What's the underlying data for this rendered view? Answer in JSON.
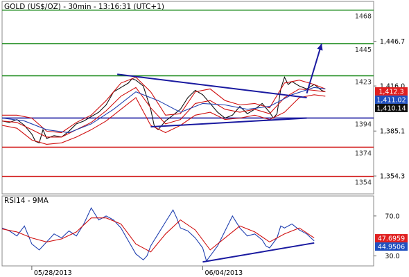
{
  "chart_data": [
    {
      "type": "line",
      "title": "GOLD (US$/OZ) - 30min - 13:16:31 (UTC+1)",
      "yticks": [
        "1,446.7",
        "1,416.0",
        "1,385.1",
        "1,354.3"
      ],
      "ytick_values": [
        1446.7,
        1416.0,
        1385.1,
        1354.3
      ],
      "ylim": [
        1342,
        1474
      ],
      "xlim": [
        0,
        100
      ],
      "x_dates": [
        {
          "label": "05/28/2013",
          "x": 8
        },
        {
          "label": "06/04/2013",
          "x": 54
        }
      ],
      "levels": [
        {
          "value": 1468,
          "label": "1468",
          "color": "#1a8a1a"
        },
        {
          "value": 1445,
          "label": "1445",
          "color": "#1a8a1a"
        },
        {
          "value": 1423,
          "label": "1423",
          "color": "#1a8a1a"
        },
        {
          "value": 1394,
          "label": "1394",
          "color": "#1a1aa0"
        },
        {
          "value": 1374,
          "label": "1374",
          "color": "#d01010"
        },
        {
          "value": 1354,
          "label": "1354",
          "color": "#d01010"
        }
      ],
      "price_tags": [
        {
          "label": "1,412.3",
          "value": 1412.3,
          "color": "#e02020"
        },
        {
          "label": "1,411.02",
          "value": 1411.02,
          "color": "#2050c0"
        },
        {
          "label": "1,410.14",
          "value": 1410.14,
          "color": "#111111"
        }
      ],
      "series": [
        {
          "color": "#111111",
          "x": [
            0,
            2,
            4,
            6,
            8,
            9,
            10,
            11,
            12,
            14,
            16,
            18,
            20,
            22,
            24,
            26,
            28,
            30,
            32,
            34,
            35,
            36,
            38,
            40,
            41,
            42,
            44,
            46,
            48,
            50,
            52,
            54,
            56,
            58,
            60,
            62,
            64,
            66,
            68,
            70,
            72,
            73,
            74,
            75,
            76,
            77,
            78,
            80,
            82,
            84,
            86,
            87
          ],
          "values": [
            1392,
            1391,
            1393,
            1389,
            1383,
            1378,
            1377,
            1386,
            1380,
            1382,
            1381,
            1385,
            1390,
            1392,
            1395,
            1398,
            1403,
            1412,
            1415,
            1418,
            1421,
            1420,
            1416,
            1400,
            1388,
            1386,
            1392,
            1396,
            1400,
            1408,
            1413,
            1410,
            1404,
            1398,
            1394,
            1396,
            1402,
            1397,
            1400,
            1404,
            1398,
            1394,
            1397,
            1414,
            1422,
            1417,
            1419,
            1416,
            1414,
            1417,
            1413,
            1412
          ]
        },
        {
          "color": "#d01010",
          "x": [
            0,
            4,
            8,
            12,
            16,
            20,
            24,
            28,
            32,
            36,
            40,
            44,
            48,
            52,
            56,
            60,
            64,
            68,
            72,
            76,
            80,
            84,
            87
          ],
          "values": [
            1396,
            1396,
            1394,
            1385,
            1384,
            1391,
            1396,
            1406,
            1418,
            1422,
            1412,
            1396,
            1397,
            1412,
            1414,
            1406,
            1403,
            1404,
            1401,
            1418,
            1420,
            1417,
            1414
          ]
        },
        {
          "color": "#d01010",
          "x": [
            0,
            4,
            8,
            12,
            16,
            20,
            24,
            28,
            32,
            36,
            40,
            44,
            48,
            52,
            56,
            60,
            64,
            68,
            72,
            76,
            80,
            84,
            87
          ],
          "values": [
            1389,
            1387,
            1379,
            1376,
            1377,
            1381,
            1386,
            1392,
            1400,
            1408,
            1389,
            1384,
            1389,
            1396,
            1398,
            1393,
            1394,
            1396,
            1393,
            1398,
            1408,
            1410,
            1409
          ]
        },
        {
          "color": "#d01010",
          "x": [
            0,
            4,
            8,
            12,
            16,
            20,
            24,
            28,
            32,
            36,
            40,
            44,
            48,
            52,
            56,
            60,
            64,
            68,
            72,
            76,
            80,
            84,
            87
          ],
          "values": [
            1392,
            1391,
            1386,
            1381,
            1381,
            1386,
            1391,
            1399,
            1409,
            1415,
            1401,
            1390,
            1393,
            1404,
            1406,
            1400,
            1398,
            1400,
            1397,
            1408,
            1414,
            1413,
            1412
          ]
        },
        {
          "color": "#2040b0",
          "x": [
            0,
            6,
            12,
            18,
            24,
            30,
            36,
            42,
            48,
            54,
            60,
            66,
            72,
            78,
            84,
            87
          ],
          "values": [
            1394,
            1392,
            1386,
            1384,
            1390,
            1400,
            1412,
            1406,
            1398,
            1404,
            1403,
            1400,
            1402,
            1410,
            1415,
            1414
          ]
        }
      ],
      "annotations": [
        {
          "kind": "trend",
          "color": "#1a1aa0",
          "x": [
            31,
            82
          ],
          "values": [
            1424,
            1408
          ]
        },
        {
          "kind": "trend",
          "color": "#1a1aa0",
          "x": [
            40,
            82
          ],
          "values": [
            1388,
            1394
          ]
        },
        {
          "kind": "arrow",
          "color": "#1a1aa0",
          "x": [
            82,
            86
          ],
          "values": [
            1411,
            1445
          ]
        }
      ]
    },
    {
      "type": "line",
      "title": "RSI14 - 9MA",
      "yticks": [
        "70.0",
        "30.0"
      ],
      "ytick_values": [
        70,
        30
      ],
      "ylim": [
        20,
        90
      ],
      "xlim": [
        0,
        100
      ],
      "price_tags": [
        {
          "label": "47.6959",
          "value": 47.6959,
          "color": "#e02020"
        },
        {
          "label": "44.9506",
          "value": 44.9506,
          "color": "#2050c0"
        }
      ],
      "series": [
        {
          "name": "RSI14",
          "color": "#2040b0",
          "x": [
            0,
            2,
            4,
            6,
            8,
            10,
            12,
            14,
            16,
            18,
            20,
            22,
            24,
            25,
            26,
            28,
            30,
            32,
            34,
            36,
            38,
            39,
            40,
            42,
            44,
            46,
            47,
            48,
            50,
            52,
            54,
            55,
            56,
            58,
            60,
            62,
            64,
            66,
            68,
            70,
            71,
            72,
            74,
            75,
            76,
            78,
            80,
            82,
            84
          ],
          "values": [
            58,
            55,
            50,
            60,
            42,
            36,
            44,
            52,
            48,
            55,
            50,
            62,
            78,
            72,
            66,
            70,
            66,
            58,
            45,
            32,
            26,
            30,
            40,
            52,
            64,
            76,
            68,
            58,
            55,
            48,
            38,
            25,
            30,
            40,
            55,
            70,
            58,
            50,
            52,
            46,
            40,
            38,
            48,
            60,
            58,
            62,
            56,
            52,
            45
          ]
        },
        {
          "name": "9MA",
          "color": "#d01010",
          "x": [
            0,
            4,
            8,
            12,
            16,
            20,
            24,
            28,
            32,
            36,
            40,
            44,
            48,
            52,
            56,
            60,
            64,
            68,
            72,
            76,
            80,
            84
          ],
          "values": [
            57,
            54,
            48,
            44,
            47,
            54,
            68,
            68,
            62,
            42,
            34,
            52,
            66,
            56,
            36,
            48,
            60,
            54,
            44,
            52,
            58,
            48
          ]
        }
      ],
      "annotations": [
        {
          "kind": "trend",
          "color": "#1a1aa0",
          "x": [
            54,
            84
          ],
          "values": [
            24,
            43
          ]
        }
      ]
    }
  ]
}
